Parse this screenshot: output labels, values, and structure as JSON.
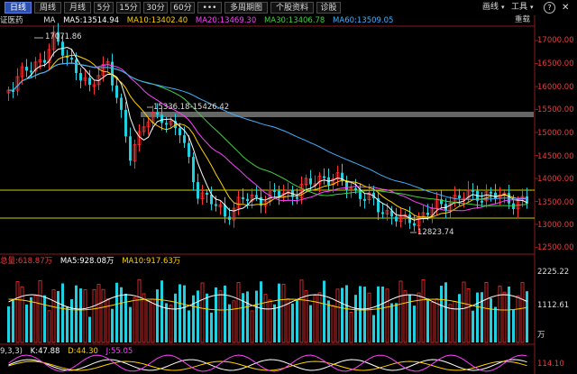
{
  "toolbar": {
    "tabs": [
      "日线",
      "周线",
      "月线",
      "5分",
      "15分",
      "30分",
      "60分",
      "•••",
      "多周期图",
      "个股资料",
      "诊股"
    ],
    "right": [
      "画线",
      "工具"
    ],
    "icons": [
      "draw-line-icon",
      "tools-icon",
      "help-icon",
      "close-icon"
    ]
  },
  "ma_legend": {
    "stock_name": "证医药",
    "ma": "MA",
    "ma5": "MA5:13514.94",
    "ma10": "MA10:13402.40",
    "ma20": "MA20:13469.30",
    "ma30": "MA30:13406.78",
    "ma60": "MA60:13509.05",
    "right_label": "重载",
    "colors": {
      "ma5": "#ffffff",
      "ma10": "#ffd000",
      "ma20": "#ff40ff",
      "ma30": "#40d040",
      "ma60": "#40b0ff"
    }
  },
  "price_axis": [
    "17000.00",
    "16500.00",
    "16000.00",
    "15500.00",
    "15000.00",
    "14500.00",
    "14000.00",
    "13500.00",
    "13000.00",
    "12500.00"
  ],
  "annotations": {
    "high": "17071.86",
    "low": "12823.74",
    "range": "15336.18-15426.42"
  },
  "volume_panel": {
    "total": "总量:618.87万",
    "ma5": "MA5:928.08万",
    "ma10": "MA10:917.63万",
    "top_val": "2225.22",
    "mid_val": "1112.61",
    "unit": "万"
  },
  "kdj_panel": {
    "params": "9,3,3)",
    "k": "K:47.88",
    "d": "D:44.30",
    "j": "J:55.05",
    "top_val": "114.10"
  }
}
